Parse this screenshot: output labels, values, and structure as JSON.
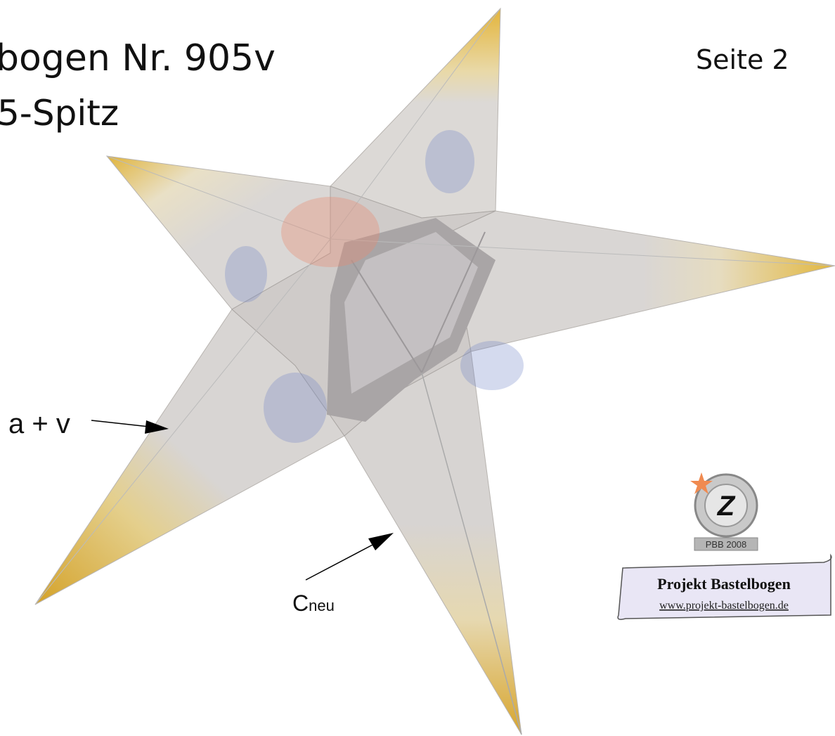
{
  "header": {
    "title": "bogen Nr. 905v",
    "subtitle": "5-Spitz",
    "page": "Seite 2"
  },
  "labels": {
    "edge_av": "a + v",
    "edge_c": {
      "letter": "C",
      "subscript": "neu"
    }
  },
  "logo": {
    "letter": "Z",
    "badge": "PBB 2008",
    "name": "Projekt Bastelbogen",
    "url": "www.projekt-bastelbogen.de"
  }
}
